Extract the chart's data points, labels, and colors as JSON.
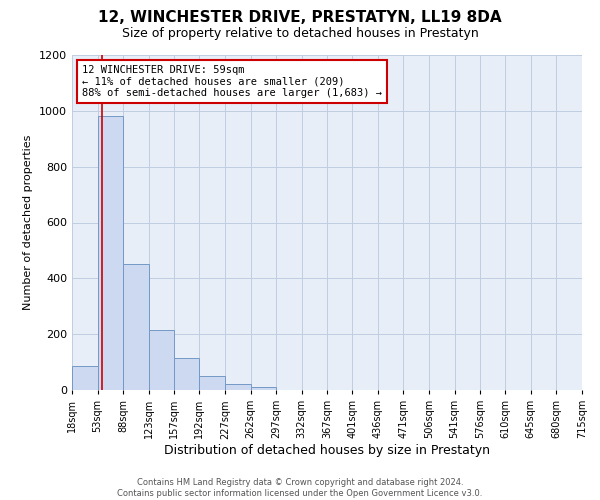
{
  "title": "12, WINCHESTER DRIVE, PRESTATYN, LL19 8DA",
  "subtitle": "Size of property relative to detached houses in Prestatyn",
  "xlabel": "Distribution of detached houses by size in Prestatyn",
  "ylabel": "Number of detached properties",
  "bar_edges": [
    18,
    53,
    88,
    123,
    157,
    192,
    227,
    262,
    297,
    332,
    367,
    401,
    436,
    471,
    506,
    541,
    576,
    610,
    645,
    680,
    715
  ],
  "bar_heights": [
    85,
    980,
    450,
    215,
    115,
    50,
    20,
    12,
    0,
    0,
    0,
    0,
    0,
    0,
    0,
    0,
    0,
    0,
    0,
    0
  ],
  "bar_color": "#ccd9f0",
  "bar_edgecolor": "#7399c6",
  "property_line_x": 59,
  "property_line_color": "#cc0000",
  "annotation_box_color": "#cc0000",
  "annotation_text_line1": "12 WINCHESTER DRIVE: 59sqm",
  "annotation_text_line2": "← 11% of detached houses are smaller (209)",
  "annotation_text_line3": "88% of semi-detached houses are larger (1,683) →",
  "ylim": [
    0,
    1200
  ],
  "yticks": [
    0,
    200,
    400,
    600,
    800,
    1000,
    1200
  ],
  "tick_labels": [
    "18sqm",
    "53sqm",
    "88sqm",
    "123sqm",
    "157sqm",
    "192sqm",
    "227sqm",
    "262sqm",
    "297sqm",
    "332sqm",
    "367sqm",
    "401sqm",
    "436sqm",
    "471sqm",
    "506sqm",
    "541sqm",
    "576sqm",
    "610sqm",
    "645sqm",
    "680sqm",
    "715sqm"
  ],
  "footer_line1": "Contains HM Land Registry data © Crown copyright and database right 2024.",
  "footer_line2": "Contains public sector information licensed under the Open Government Licence v3.0.",
  "bg_color": "#ffffff",
  "plot_bg_color": "#e8eef8",
  "grid_color": "#c0cce0"
}
